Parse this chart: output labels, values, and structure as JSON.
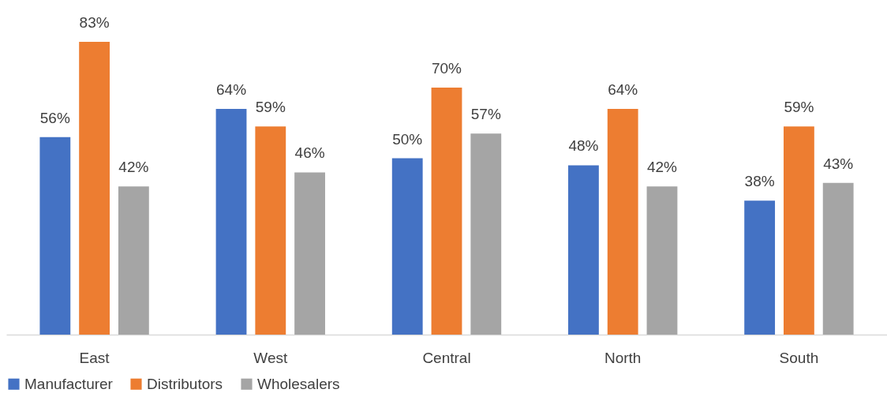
{
  "chart_data": {
    "type": "bar",
    "categories": [
      "East",
      "West",
      "Central",
      "North",
      "South"
    ],
    "series": [
      {
        "name": "Manufacturer",
        "color": "#4472c4",
        "values": [
          56,
          64,
          50,
          48,
          38
        ],
        "value_labels": [
          "56%",
          "64%",
          "50%",
          "48%",
          "38%"
        ]
      },
      {
        "name": "Distributors",
        "color": "#ed7d31",
        "values": [
          83,
          59,
          70,
          64,
          59
        ],
        "value_labels": [
          "83%",
          "59%",
          "70%",
          "64%",
          "59%"
        ]
      },
      {
        "name": "Wholesalers",
        "color": "#a5a5a5",
        "values": [
          42,
          46,
          57,
          42,
          43
        ],
        "value_labels": [
          "42%",
          "46%",
          "57%",
          "42%",
          "43%"
        ]
      }
    ],
    "legend": "bottom"
  }
}
